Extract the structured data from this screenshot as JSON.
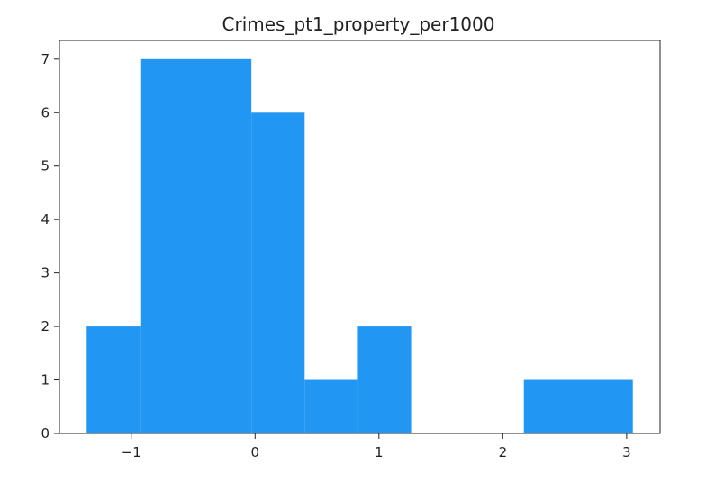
{
  "chart_data": {
    "type": "bar",
    "title": "Crimes_pt1_property_per1000",
    "xlabel": "",
    "ylabel": "",
    "bin_edges": [
      -1.36,
      -0.92,
      -0.03,
      0.4,
      0.83,
      1.26,
      2.17,
      3.05
    ],
    "values": [
      2,
      7,
      6,
      1,
      2,
      0,
      1
    ],
    "xlim": [
      -1.58,
      3.27
    ],
    "ylim": [
      0,
      7.35
    ],
    "xticks": [
      -1,
      0,
      1,
      2,
      3
    ],
    "xtick_labels": [
      "−1",
      "0",
      "1",
      "2",
      "3"
    ],
    "yticks": [
      0,
      1,
      2,
      3,
      4,
      5,
      6,
      7
    ],
    "ytick_labels": [
      "0",
      "1",
      "2",
      "3",
      "4",
      "5",
      "6",
      "7"
    ],
    "bar_color": "#2196F3",
    "grid": false,
    "legend": "none"
  }
}
